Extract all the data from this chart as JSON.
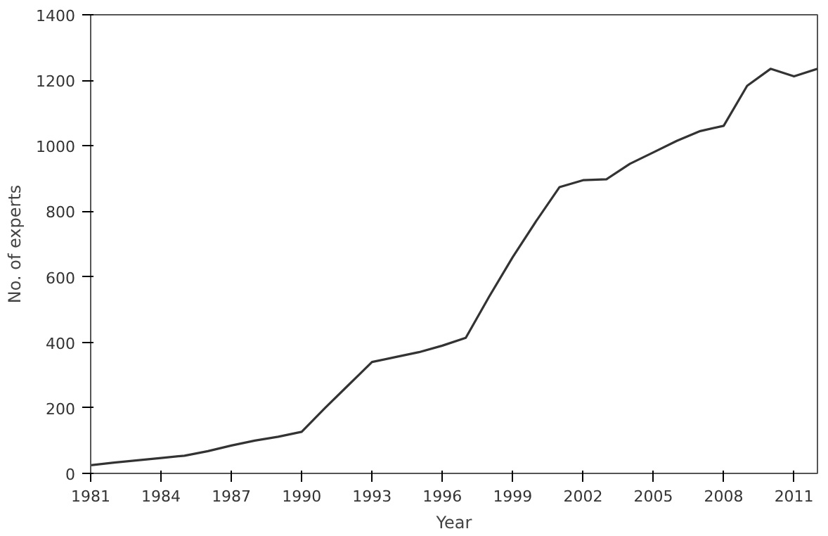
{
  "chart_data": {
    "type": "line",
    "xlabel": "Year",
    "ylabel": "No. of experts",
    "x": [
      1981,
      1982,
      1983,
      1984,
      1985,
      1986,
      1987,
      1988,
      1989,
      1990,
      1991,
      1992,
      1993,
      1994,
      1995,
      1996,
      1997,
      1998,
      1999,
      2000,
      2001,
      2002,
      2003,
      2004,
      2005,
      2006,
      2007,
      2008,
      2009,
      2010,
      2011,
      2012
    ],
    "series": [
      {
        "color": "#333333",
        "values": [
          25,
          33,
          40,
          47,
          54,
          68,
          85,
          100,
          112,
          127,
          200,
          270,
          340,
          355,
          370,
          390,
          414,
          540,
          660,
          770,
          874,
          895,
          898,
          945,
          980,
          1015,
          1045,
          1061,
          1183,
          1235,
          1212,
          1235
        ]
      }
    ],
    "xlim": [
      1981,
      2012
    ],
    "ylim": [
      0,
      1400
    ],
    "xticks": [
      1981,
      1984,
      1987,
      1990,
      1993,
      1996,
      1999,
      2002,
      2005,
      2008,
      2011
    ],
    "yticks": [
      0,
      200,
      400,
      600,
      800,
      1000,
      1200,
      1400
    ],
    "grid": false,
    "marker": "none",
    "line_style": "solid"
  }
}
